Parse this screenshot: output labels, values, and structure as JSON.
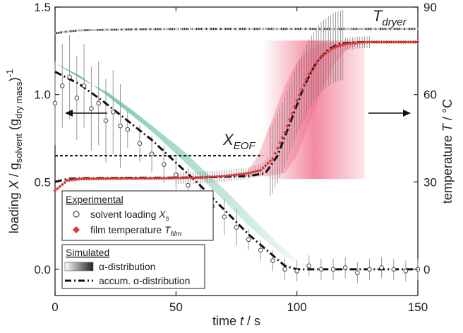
{
  "chart_data": {
    "type": "scatter",
    "x_axis": {
      "label_prefix": "time ",
      "label_var": "t",
      "label_suffix": " / s",
      "range": [
        0,
        150
      ],
      "ticks": [
        0,
        50,
        100,
        150
      ],
      "tick_labels": [
        "0",
        "50",
        "100",
        "150"
      ]
    },
    "y_left": {
      "label_a": "loading ",
      "label_var": "X",
      "label_b": " / g",
      "label_sub1": "solvent",
      "label_c": " (g",
      "label_sub2": "dry mass",
      "label_d": ")",
      "label_sup": "-1",
      "range": [
        -0.15,
        1.5
      ],
      "ticks": [
        0.0,
        0.5,
        1.0,
        1.5
      ],
      "tick_labels": [
        "0.0",
        "0.5",
        "1.0",
        "1.5"
      ]
    },
    "y_right": {
      "label_a": "temperature ",
      "label_var": "T",
      "label_b": " / °C",
      "range": [
        -9,
        90
      ],
      "ticks": [
        0,
        30,
        60,
        90
      ],
      "tick_labels": [
        "0",
        "30",
        "60",
        "90"
      ]
    },
    "annotations": {
      "t_dryer_main": "T",
      "t_dryer_sub": "dryer",
      "x_eof_main": "X",
      "x_eof_sub": "EOF",
      "x_eof_value": 0.65
    },
    "legend_experimental": {
      "title": "Experimental",
      "item1_label": "solvent loading ",
      "item1_var": "X",
      "item1_sub": "s",
      "item2_label": "film temperature ",
      "item2_var": "T",
      "item2_sub": "film"
    },
    "legend_simulated": {
      "title": "Simulated",
      "item1": "α-distribution",
      "item2": "accum. α-distribution"
    },
    "series": [
      {
        "name": "solvent loading X_s",
        "axis": "left",
        "color": "#ffffff",
        "edge": "#555555",
        "points": [
          [
            0,
            0.95
          ],
          [
            3,
            1.05
          ],
          [
            6,
            1.1
          ],
          [
            9,
            0.98
          ],
          [
            12,
            1.05
          ],
          [
            15,
            0.92
          ],
          [
            18,
            0.95
          ],
          [
            21,
            0.85
          ],
          [
            24,
            0.9
          ],
          [
            27,
            0.82
          ],
          [
            30,
            0.8
          ],
          [
            35,
            0.72
          ],
          [
            40,
            0.66
          ],
          [
            45,
            0.6
          ],
          [
            50,
            0.54
          ],
          [
            55,
            0.48
          ],
          [
            60,
            0.42
          ],
          [
            65,
            0.36
          ],
          [
            70,
            0.3
          ],
          [
            75,
            0.24
          ],
          [
            80,
            0.17
          ],
          [
            85,
            0.11
          ],
          [
            90,
            0.05
          ],
          [
            95,
            0.0
          ],
          [
            100,
            -0.01
          ],
          [
            105,
            0.02
          ],
          [
            110,
            0.0
          ],
          [
            115,
            0.0
          ],
          [
            120,
            0.01
          ],
          [
            125,
            -0.02
          ],
          [
            130,
            0.0
          ],
          [
            135,
            0.01
          ],
          [
            140,
            0.0
          ],
          [
            145,
            -0.01
          ],
          [
            150,
            0.0
          ]
        ],
        "error": 0.15
      },
      {
        "name": "film temperature T_film",
        "axis": "right",
        "color": "#d63a3a",
        "points": [
          [
            0,
            27
          ],
          [
            5,
            30.5
          ],
          [
            10,
            31
          ],
          [
            20,
            31.1
          ],
          [
            30,
            31.2
          ],
          [
            40,
            31.2
          ],
          [
            50,
            31.3
          ],
          [
            60,
            31.5
          ],
          [
            70,
            32
          ],
          [
            80,
            33
          ],
          [
            85,
            34
          ],
          [
            90,
            38
          ],
          [
            95,
            47
          ],
          [
            100,
            58
          ],
          [
            105,
            67
          ],
          [
            110,
            73
          ],
          [
            115,
            76
          ],
          [
            120,
            77.3
          ],
          [
            125,
            77.8
          ],
          [
            130,
            78
          ],
          [
            140,
            78
          ],
          [
            150,
            78
          ]
        ]
      },
      {
        "name": "T_dryer",
        "axis": "right",
        "color": "#9a9a9a",
        "points": [
          [
            0,
            81
          ],
          [
            5,
            81.6
          ],
          [
            10,
            82
          ],
          [
            20,
            82.2
          ],
          [
            40,
            82.4
          ],
          [
            60,
            82.5
          ],
          [
            80,
            82.5
          ],
          [
            100,
            82.5
          ],
          [
            120,
            82.5
          ],
          [
            150,
            82.5
          ]
        ]
      }
    ],
    "simulated_accum_loading": [
      [
        0,
        1.13
      ],
      [
        10,
        1.06
      ],
      [
        20,
        0.96
      ],
      [
        30,
        0.85
      ],
      [
        40,
        0.74
      ],
      [
        50,
        0.61
      ],
      [
        60,
        0.48
      ],
      [
        70,
        0.34
      ],
      [
        80,
        0.2
      ],
      [
        90,
        0.08
      ],
      [
        95,
        0.02
      ],
      [
        100,
        0.0
      ],
      [
        110,
        0.0
      ],
      [
        150,
        0.0
      ]
    ],
    "simulated_accum_temp": [
      [
        0,
        30
      ],
      [
        5,
        31
      ],
      [
        10,
        31.3
      ],
      [
        30,
        31.4
      ],
      [
        60,
        31.5
      ],
      [
        80,
        32
      ],
      [
        87,
        33
      ],
      [
        92,
        39
      ],
      [
        98,
        52
      ],
      [
        103,
        63
      ],
      [
        108,
        71
      ],
      [
        113,
        75.5
      ],
      [
        118,
        77.5
      ],
      [
        125,
        78
      ],
      [
        150,
        78
      ]
    ],
    "colors": {
      "alpha_band_loading": "#3cb99a",
      "alpha_band_temp": "#f06482",
      "experimental_temp": "#d63a3a",
      "experimental_loading_edge": "#444444"
    }
  }
}
